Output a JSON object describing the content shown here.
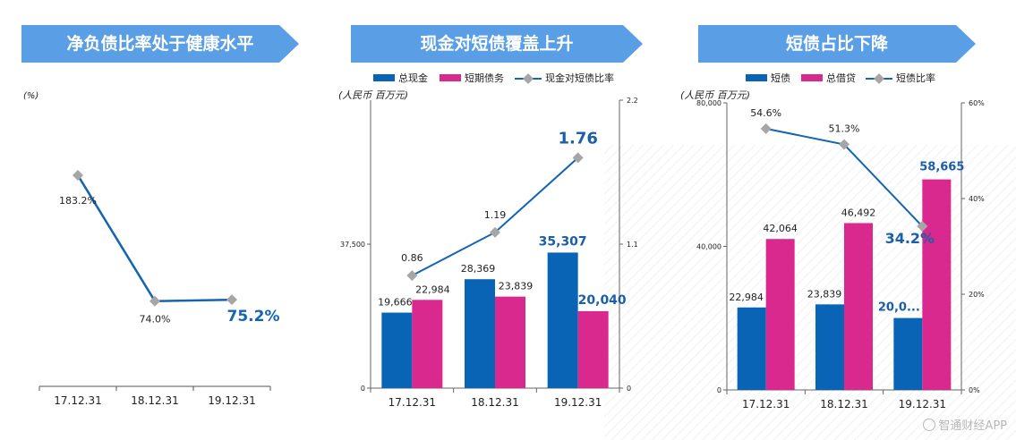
{
  "banners": {
    "left": "净负债比率处于健康水平",
    "middle": "现金对短债覆盖上升",
    "right": "短债占比下降"
  },
  "watermark": "智通财经APP",
  "chart_data": [
    {
      "type": "line",
      "title": "净负债比率处于健康水平",
      "ylabel": "(%)",
      "categories": [
        "17.12.31",
        "18.12.31",
        "19.12.31"
      ],
      "series": [
        {
          "name": "",
          "values": [
            183.2,
            74.0,
            75.2
          ]
        }
      ],
      "value_labels": [
        "183.2%",
        "74.0%",
        "75.2%"
      ],
      "ylim": [
        0,
        250
      ],
      "colors": {
        "line": "#1464b4",
        "marker": "#a6a6a6",
        "highlight": "#1464b4"
      }
    },
    {
      "type": "bar",
      "title": "现金对短债覆盖上升",
      "ylabel": "(人民币 百万元)",
      "categories": [
        "17.12.31",
        "18.12.31",
        "19.12.31"
      ],
      "series": [
        {
          "name": "总现金",
          "values": [
            19666,
            28369,
            35307
          ],
          "labels": [
            "19,666",
            "28,369",
            "35,307"
          ]
        },
        {
          "name": "短期债务",
          "values": [
            22984,
            23839,
            20040
          ],
          "labels": [
            "22,984",
            "23,839",
            "20,040"
          ]
        }
      ],
      "line_series": {
        "name": "现金对短债比率",
        "values": [
          0.86,
          1.19,
          1.76
        ],
        "labels": [
          "0.86",
          "1.19",
          "1.76"
        ]
      },
      "ylim": [
        0,
        75000
      ],
      "y_ticks": [
        "0",
        "37,500"
      ],
      "y_tick_values": [
        0,
        37500
      ],
      "y2lim": [
        0,
        2.2
      ],
      "y2_ticks": [
        "0",
        "1.1",
        "2.2"
      ],
      "y2_tick_values": [
        0,
        1.1,
        2.2
      ],
      "legend": "top",
      "colors": {
        "bar1": "#0a64b6",
        "bar2": "#d9288e",
        "line": "#1464b4",
        "marker": "#a6a6a6"
      }
    },
    {
      "type": "bar",
      "title": "短债占比下降",
      "ylabel": "(人民币 百万元)",
      "categories": [
        "17.12.31",
        "18.12.31",
        "19.12.31"
      ],
      "series": [
        {
          "name": "短债",
          "values": [
            22984,
            23839,
            20040
          ],
          "labels": [
            "22,984",
            "23,839",
            "20,0..."
          ]
        },
        {
          "name": "总借贷",
          "values": [
            42064,
            46492,
            58665
          ],
          "labels": [
            "42,064",
            "46,492",
            "58,665"
          ]
        }
      ],
      "line_series": {
        "name": "短债比率",
        "values": [
          54.6,
          51.3,
          34.2
        ],
        "labels": [
          "54.6%",
          "51.3%",
          "34.2%"
        ]
      },
      "ylim": [
        0,
        80000
      ],
      "y_ticks": [
        "0",
        "40,000",
        "80,000"
      ],
      "y_tick_values": [
        0,
        40000,
        80000
      ],
      "y2lim": [
        0,
        60
      ],
      "y2_ticks": [
        "0%",
        "20%",
        "40%",
        "60%"
      ],
      "y2_tick_values": [
        0,
        20,
        40,
        60
      ],
      "legend": "top",
      "colors": {
        "bar1": "#0a64b6",
        "bar2": "#d9288e",
        "line": "#1464b4",
        "marker": "#a6a6a6"
      }
    }
  ]
}
